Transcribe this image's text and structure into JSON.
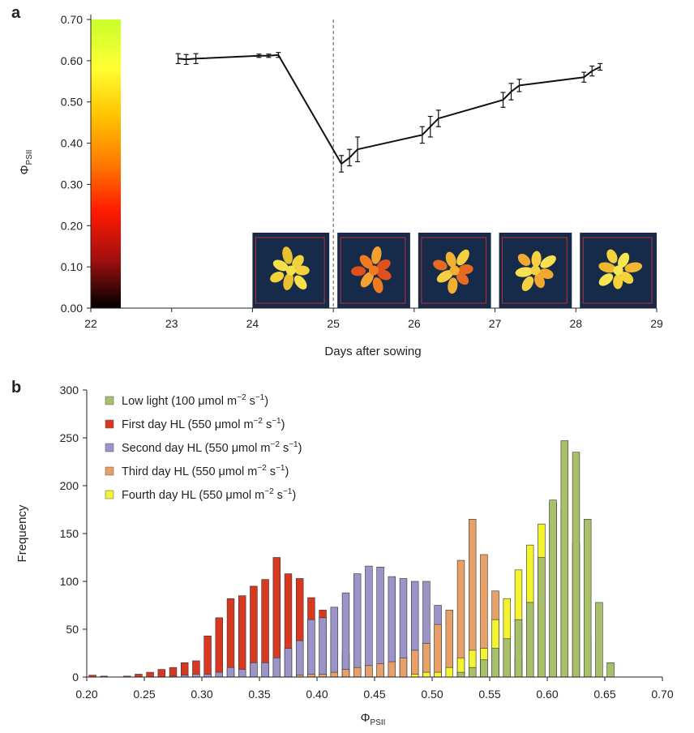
{
  "chart_data": [
    {
      "panel_label": "a",
      "type": "line",
      "xlabel": "Days after sowing",
      "ylabel_main": "Φ",
      "ylabel_sub": "PSII",
      "x_ticks": [
        "22",
        "23",
        "24",
        "25",
        "26",
        "27",
        "28",
        "29"
      ],
      "y_ticks": [
        "0.00",
        "0.10",
        "0.20",
        "0.30",
        "0.40",
        "0.50",
        "0.60",
        "0.70"
      ],
      "xlim": [
        22,
        29
      ],
      "ylim": [
        0,
        0.7
      ],
      "colorbar": {
        "range": [
          0,
          0.7
        ],
        "colors": [
          "#000000",
          "#a01010",
          "#ff1a00",
          "#ff7a00",
          "#ffc400",
          "#ffff33",
          "#c8ff2a"
        ]
      },
      "dashed_line_x": 25,
      "series": [
        {
          "x": [
            23.08,
            23.18,
            23.3,
            24.08,
            24.2,
            24.32,
            25.1,
            25.2,
            25.3,
            26.1,
            26.2,
            26.3,
            27.1,
            27.2,
            27.3,
            28.1,
            28.2,
            28.3
          ],
          "y": [
            0.605,
            0.603,
            0.605,
            0.612,
            0.612,
            0.614,
            0.35,
            0.365,
            0.385,
            0.42,
            0.44,
            0.46,
            0.505,
            0.525,
            0.54,
            0.56,
            0.575,
            0.585
          ],
          "err": [
            0.012,
            0.012,
            0.012,
            0.004,
            0.004,
            0.006,
            0.02,
            0.02,
            0.03,
            0.02,
            0.025,
            0.02,
            0.018,
            0.02,
            0.015,
            0.012,
            0.012,
            0.008
          ]
        }
      ],
      "thumbnails": [
        {
          "x_start": 24,
          "x_end": 24.95,
          "tone": "healthy"
        },
        {
          "x_start": 25.05,
          "x_end": 25.95,
          "tone": "stressed"
        },
        {
          "x_start": 26.05,
          "x_end": 26.95,
          "tone": "recovering1"
        },
        {
          "x_start": 27.05,
          "x_end": 27.95,
          "tone": "recovering2"
        },
        {
          "x_start": 28.05,
          "x_end": 29,
          "tone": "recovered"
        }
      ]
    },
    {
      "panel_label": "b",
      "type": "bar",
      "xlabel_main": "Φ",
      "xlabel_sub": "PSII",
      "ylabel": "Frequency",
      "x_ticks": [
        "0.20",
        "0.25",
        "0.30",
        "0.35",
        "0.40",
        "0.45",
        "0.50",
        "0.55",
        "0.60",
        "0.65",
        "0.70"
      ],
      "y_ticks": [
        "0",
        "50",
        "100",
        "150",
        "200",
        "250",
        "300"
      ],
      "xlim": [
        0.2,
        0.7
      ],
      "ylim": [
        0,
        300
      ],
      "bin_width": 0.01,
      "legend": [
        {
          "text": "Low light (100 μmol m",
          "sup1": "−2",
          "mid": " s",
          "sup2": "−1",
          "end": ")",
          "color": "#a9c06a"
        },
        {
          "text": "First day HL (550 μmol m",
          "sup1": "−2",
          "mid": " s",
          "sup2": "−1",
          "end": ")",
          "color": "#d93820"
        },
        {
          "text": "Second day HL (550 μmol m",
          "sup1": "−2",
          "mid": " s",
          "sup2": "−1",
          "end": ")",
          "color": "#9a94c8"
        },
        {
          "text": "Third day HL (550 μmol m",
          "sup1": "−2",
          "mid": " s",
          "sup2": "−1",
          "end": ")",
          "color": "#e6a068"
        },
        {
          "text": "Fourth day HL (550 μmol m",
          "sup1": "−2",
          "mid": " s",
          "sup2": "−1",
          "end": ")",
          "color": "#f3f330"
        }
      ],
      "series": [
        {
          "name": "First day HL",
          "color": "#d93820",
          "x": [
            0.205,
            0.215,
            0.225,
            0.235,
            0.245,
            0.255,
            0.265,
            0.275,
            0.285,
            0.295,
            0.305,
            0.315,
            0.325,
            0.335,
            0.345,
            0.355,
            0.365,
            0.375,
            0.385,
            0.395,
            0.405,
            0.415,
            0.425,
            0.435
          ],
          "y": [
            2,
            1,
            0,
            1,
            3,
            5,
            8,
            10,
            15,
            17,
            43,
            62,
            82,
            85,
            95,
            102,
            125,
            108,
            103,
            83,
            70,
            47,
            25,
            10
          ]
        },
        {
          "name": "Second day HL",
          "color": "#9a94c8",
          "x": [
            0.275,
            0.285,
            0.295,
            0.305,
            0.315,
            0.325,
            0.335,
            0.345,
            0.355,
            0.365,
            0.375,
            0.385,
            0.395,
            0.405,
            0.415,
            0.425,
            0.435,
            0.445,
            0.455,
            0.465,
            0.475,
            0.485,
            0.495,
            0.505
          ],
          "y": [
            1,
            2,
            3,
            3,
            5,
            10,
            8,
            15,
            15,
            20,
            30,
            38,
            60,
            62,
            73,
            88,
            108,
            116,
            115,
            105,
            103,
            100,
            100,
            75
          ]
        },
        {
          "name": "Third day HL",
          "color": "#e6a068",
          "x": [
            0.385,
            0.395,
            0.405,
            0.415,
            0.425,
            0.435,
            0.445,
            0.455,
            0.465,
            0.475,
            0.485,
            0.495,
            0.505,
            0.515,
            0.525,
            0.535,
            0.545,
            0.555,
            0.565,
            0.575,
            0.585
          ],
          "y": [
            2,
            3,
            3,
            5,
            8,
            10,
            12,
            14,
            16,
            20,
            28,
            35,
            55,
            70,
            122,
            165,
            128,
            90,
            40,
            20,
            8
          ]
        },
        {
          "name": "Fourth day HL",
          "color": "#f3f330",
          "x": [
            0.485,
            0.495,
            0.505,
            0.515,
            0.525,
            0.535,
            0.545,
            0.555,
            0.565,
            0.575,
            0.585,
            0.595,
            0.605,
            0.615,
            0.625,
            0.635
          ],
          "y": [
            3,
            5,
            5,
            10,
            20,
            28,
            30,
            60,
            82,
            112,
            138,
            160,
            182,
            175,
            140,
            42
          ]
        },
        {
          "name": "Low light",
          "color": "#a9c06a",
          "x": [
            0.525,
            0.535,
            0.545,
            0.555,
            0.565,
            0.575,
            0.585,
            0.595,
            0.605,
            0.615,
            0.625,
            0.635,
            0.645,
            0.655
          ],
          "y": [
            5,
            10,
            18,
            30,
            40,
            60,
            78,
            125,
            185,
            247,
            235,
            165,
            78,
            15
          ]
        }
      ]
    }
  ]
}
